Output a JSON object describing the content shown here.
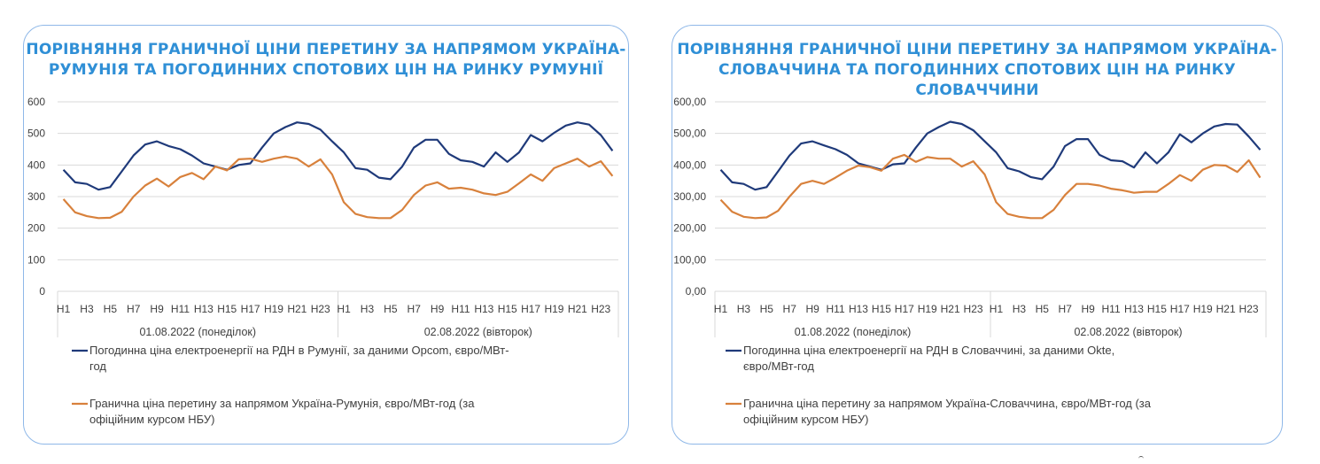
{
  "charts": [
    {
      "title_lines": [
        "ПОРІВНЯННЯ ГРАНИЧНОЇ ЦІНИ ПЕРЕТИНУ ЗА НАПРЯМОМ УКРАЇНА-",
        "РУМУНІЯ ТА ПОГОДИННИХ СПОТОВИХ ЦІН НА РИНКУ РУМУНІЇ"
      ],
      "chart_data": {
        "type": "line",
        "title": "ПОРІВНЯННЯ ГРАНИЧНОЇ ЦІНИ ПЕРЕТИНУ ЗА НАПРЯМОМ УКРАЇНА-РУМУНІЯ ТА ПОГОДИННИХ СПОТОВИХ ЦІН НА РИНКУ РУМУНІЇ",
        "ylim": [
          0,
          600
        ],
        "yticks": [
          "0",
          "100",
          "200",
          "300",
          "400",
          "500",
          "600"
        ],
        "xtick_labels": [
          "H1",
          "H3",
          "H5",
          "H7",
          "H9",
          "H11",
          "H13",
          "H15",
          "H17",
          "H19",
          "H21",
          "H23",
          "H1",
          "H3",
          "H5",
          "H7",
          "H9",
          "H11",
          "H13",
          "H15",
          "H17",
          "H19",
          "H21",
          "H23"
        ],
        "groups": [
          "01.08.2022 (понеділок)",
          "02.08.2022 (вівторок)"
        ],
        "grid": true,
        "legend_position": "bottom",
        "series": [
          {
            "name": "Погодинна ціна електроенергії на РДН в Румунії, за даними Opcom, євро/МВт-год",
            "legend_lines": [
              "Погодинна ціна електроенергії на РДН в Румунії, за даними Opcom, євро/МВт-",
              "год"
            ],
            "color": "#1f3a7a",
            "values": [
              385,
              345,
              340,
              322,
              330,
              380,
              430,
              465,
              475,
              460,
              450,
              430,
              405,
              395,
              385,
              400,
              405,
              455,
              500,
              520,
              535,
              530,
              512,
              475,
              440,
              390,
              385,
              360,
              355,
              395,
              455,
              480,
              480,
              435,
              415,
              410,
              395,
              440,
              410,
              440,
              495,
              475,
              502,
              525,
              535,
              528,
              495,
              445
            ]
          },
          {
            "name": "Гранична ціна перетину за напрямом Україна-Румунія, євро/МВт-год (за офіційним курсом НБУ)",
            "legend_lines": [
              "Гранична ціна перетину за напрямом Україна-Румунія, євро/МВт-год (за",
              "офіційним курсом НБУ)"
            ],
            "color": "#d8813c",
            "values": [
              292,
              250,
              238,
              232,
              233,
              252,
              300,
              335,
              357,
              332,
              362,
              375,
              355,
              395,
              383,
              418,
              420,
              410,
              420,
              427,
              420,
              395,
              418,
              370,
              282,
              245,
              235,
              232,
              232,
              258,
              305,
              335,
              345,
              325,
              328,
              322,
              310,
              305,
              315,
              342,
              370,
              350,
              390,
              405,
              420,
              395,
              412,
              365
            ]
          }
        ]
      }
    },
    {
      "title_lines": [
        "ПОРІВНЯННЯ ГРАНИЧНОЇ ЦІНИ ПЕРЕТИНУ ЗА НАПРЯМОМ УКРАЇНА-",
        "СЛОВАЧЧИНА ТА ПОГОДИННИХ СПОТОВИХ ЦІН НА РИНКУ СЛОВАЧЧИНИ"
      ],
      "chart_data": {
        "type": "line",
        "title": "ПОРІВНЯННЯ ГРАНИЧНОЇ ЦІНИ ПЕРЕТИНУ ЗА НАПРЯМОМ УКРАЇНА-СЛОВАЧЧИНА ТА ПОГОДИННИХ СПОТОВИХ ЦІН НА РИНКУ СЛОВАЧЧИНИ",
        "ylim": [
          0,
          600
        ],
        "yticks": [
          "0,00",
          "100,00",
          "200,00",
          "300,00",
          "400,00",
          "500,00",
          "600,00"
        ],
        "xtick_labels": [
          "H1",
          "H3",
          "H5",
          "H7",
          "H9",
          "H11",
          "H13",
          "H15",
          "H17",
          "H19",
          "H21",
          "H23",
          "H1",
          "H3",
          "H5",
          "H7",
          "H9",
          "H11",
          "H13",
          "H15",
          "H17",
          "H19",
          "H21",
          "H23"
        ],
        "groups": [
          "01.08.2022 (понеділок)",
          "02.08.2022 (вівторок)"
        ],
        "grid": true,
        "legend_position": "bottom",
        "series": [
          {
            "name": "Погодинна ціна електроенергії на РДН в Словаччині, за даними Okte, євро/МВт-год",
            "legend_lines": [
              "Погодинна ціна електроенергії на РДН в Словаччині, за даними Okte,",
              "євро/МВт-год"
            ],
            "color": "#1f3a7a",
            "values": [
              385,
              345,
              340,
              322,
              330,
              380,
              430,
              468,
              475,
              462,
              450,
              432,
              405,
              395,
              385,
              402,
              405,
              455,
              500,
              520,
              537,
              530,
              510,
              475,
              440,
              390,
              380,
              362,
              355,
              395,
              460,
              482,
              482,
              432,
              415,
              412,
              392,
              440,
              405,
              440,
              497,
              472,
              500,
              522,
              530,
              528,
              490,
              448
            ]
          },
          {
            "name": "Гранична ціна перетину за напрямом Україна-Словаччина, євро/МВт-год (за офіційним курсом НБУ)",
            "legend_lines": [
              "Гранична ціна перетину за напрямом Україна-Словаччина, євро/МВт-год (за",
              "офіційним курсом НБУ)"
            ],
            "color": "#d8813c",
            "values": [
              290,
              252,
              236,
              232,
              234,
              255,
              300,
              340,
              350,
              340,
              360,
              382,
              398,
              393,
              382,
              420,
              432,
              410,
              425,
              420,
              420,
              395,
              412,
              370,
              282,
              245,
              236,
              232,
              232,
              258,
              305,
              340,
              340,
              335,
              325,
              320,
              312,
              315,
              315,
              340,
              368,
              350,
              385,
              400,
              398,
              378,
              415,
              360
            ]
          }
        ]
      }
    }
  ]
}
